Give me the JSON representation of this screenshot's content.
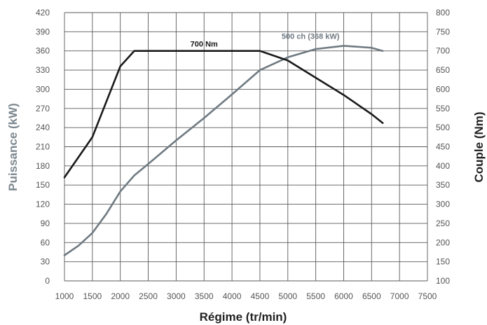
{
  "chart_data": {
    "type": "line",
    "title": "",
    "xlabel": "Régime (tr/min)",
    "ylabel_left": "Puissance (kW)",
    "ylabel_right": "Couple (Nm)",
    "xlim": [
      1000,
      7500
    ],
    "xticks": [
      1000,
      1500,
      2000,
      2500,
      3000,
      3500,
      4000,
      4500,
      5000,
      5500,
      6000,
      6500,
      7000,
      7500
    ],
    "ylim_left": [
      0,
      420
    ],
    "yticks_left": [
      0,
      30,
      60,
      90,
      120,
      150,
      180,
      210,
      240,
      270,
      300,
      330,
      360,
      390,
      420
    ],
    "ylim_right": [
      100,
      800
    ],
    "yticks_right": [
      100,
      150,
      200,
      250,
      300,
      350,
      400,
      450,
      500,
      550,
      600,
      650,
      700,
      750,
      800
    ],
    "grid": true,
    "colors": {
      "power": "#6f7a82",
      "torque": "#1a1a1a",
      "grid": "#5a5a5a",
      "power_label": "#6f7a82",
      "ylabel_left": "#7d8890",
      "xlabel": "#222222"
    },
    "annotations": [
      {
        "text": "700 Nm",
        "series": "torque",
        "x": 3500,
        "y": 700
      },
      {
        "text": "500 ch (368 kW)",
        "series": "power",
        "x": 6000,
        "y": 368
      }
    ],
    "series": [
      {
        "key": "power",
        "axis": "left",
        "x": [
          1000,
          1250,
          1500,
          1750,
          2000,
          2250,
          2500,
          3000,
          3500,
          4000,
          4500,
          5000,
          5500,
          6000,
          6500,
          6700
        ],
        "values": [
          40,
          55,
          75,
          105,
          140,
          165,
          183,
          220,
          255,
          292,
          330,
          350,
          363,
          368,
          365,
          360
        ]
      },
      {
        "key": "torque",
        "axis": "right",
        "x": [
          1000,
          1500,
          2000,
          2250,
          2500,
          3000,
          3500,
          4000,
          4500,
          5000,
          5500,
          6000,
          6500,
          6700
        ],
        "values": [
          370,
          475,
          660,
          700,
          700,
          700,
          700,
          700,
          700,
          675,
          630,
          585,
          535,
          512
        ]
      }
    ]
  }
}
